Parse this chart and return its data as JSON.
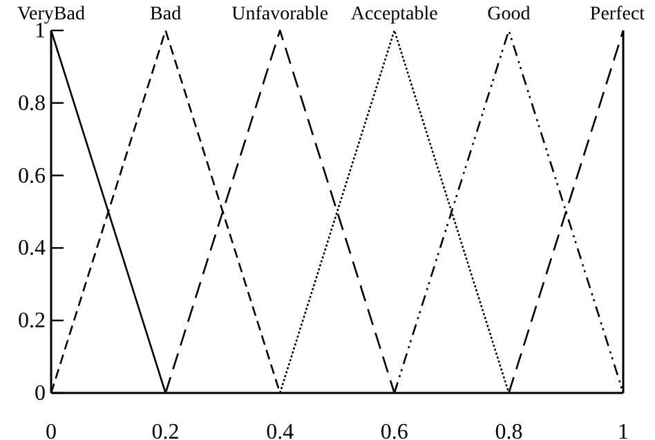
{
  "chart_data": {
    "type": "line",
    "xlim": [
      0,
      1
    ],
    "ylim": [
      0,
      1
    ],
    "xticks": [
      0,
      0.2,
      0.4,
      0.6,
      0.8,
      1
    ],
    "yticks": [
      0,
      0.2,
      0.4,
      0.6,
      0.8,
      1
    ],
    "grid": false,
    "legend": false,
    "marker": "none",
    "series": [
      {
        "name": "VeryBad",
        "color": "#000000",
        "line_style": "solid",
        "x": [
          0,
          0.2
        ],
        "values": [
          1,
          0
        ]
      },
      {
        "name": "Bad",
        "color": "#000000",
        "line_style": "dashed",
        "x": [
          0,
          0.2,
          0.4
        ],
        "values": [
          0,
          1,
          0
        ]
      },
      {
        "name": "Unfavorable",
        "color": "#000000",
        "line_style": "longdash",
        "x": [
          0.2,
          0.4,
          0.6
        ],
        "values": [
          0,
          1,
          0
        ]
      },
      {
        "name": "Acceptable",
        "color": "#000000",
        "line_style": "dotted",
        "x": [
          0.4,
          0.6,
          0.8
        ],
        "values": [
          0,
          1,
          0
        ]
      },
      {
        "name": "Good",
        "color": "#000000",
        "line_style": "dashdot",
        "x": [
          0.6,
          0.8,
          1
        ],
        "values": [
          0,
          1,
          0
        ]
      },
      {
        "name": "Perfect",
        "color": "#000000",
        "line_style": "longdash",
        "x": [
          0.8,
          1
        ],
        "values": [
          0,
          1
        ]
      }
    ]
  }
}
